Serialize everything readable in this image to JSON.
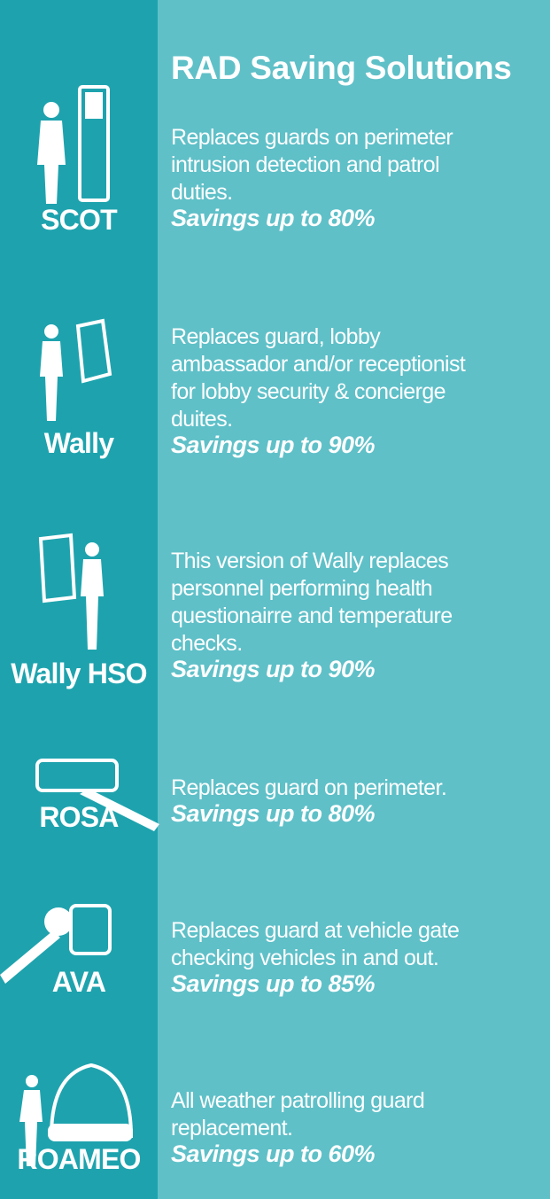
{
  "title": "RAD Saving Solutions",
  "items": [
    {
      "name": "SCOT",
      "description": [
        "Replaces guards on perimeter",
        "intrusion detection and patrol",
        "duties."
      ],
      "savings": "Savings up to 80%"
    },
    {
      "name": "Wally",
      "description": [
        "Replaces guard, lobby",
        "ambassador and/or receptionist",
        "for lobby security & concierge",
        "duites."
      ],
      "savings": "Savings up to 90%"
    },
    {
      "name": "Wally HSO",
      "description": [
        "This version of Wally replaces",
        "personnel performing health",
        "questionairre and temperature",
        "checks."
      ],
      "savings": "Savings up to 90%"
    },
    {
      "name": "ROSA",
      "description": [
        "Replaces guard on perimeter."
      ],
      "savings": "Savings up to 80%"
    },
    {
      "name": "AVA",
      "description": [
        "Replaces guard at vehicle gate",
        "checking vehicles in and out."
      ],
      "savings": "Savings up to 85%"
    },
    {
      "name": "ROAMEO",
      "description": [
        "All weather patrolling guard",
        "replacement."
      ],
      "savings": "Savings up to 60%"
    }
  ]
}
